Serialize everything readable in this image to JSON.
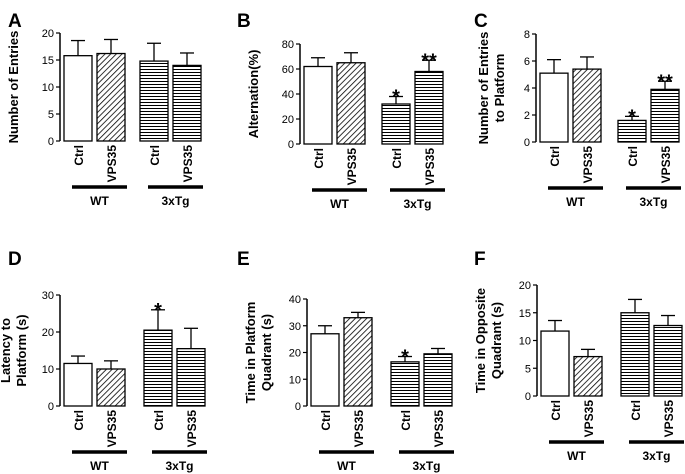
{
  "chart_data": [
    {
      "panel": "A",
      "type": "bar",
      "ylabel": [
        "Number of Entries"
      ],
      "ylim": [
        0,
        20
      ],
      "yticks": [
        0,
        5,
        10,
        15,
        20
      ],
      "categories": [
        "Ctrl",
        "VPS35",
        "Ctrl",
        "VPS35"
      ],
      "groups": [
        "WT",
        "3xTg"
      ],
      "values": [
        15.8,
        16.2,
        14.8,
        14.0
      ],
      "errors": [
        2.8,
        2.6,
        3.3,
        2.3
      ],
      "annotations": [
        "",
        "",
        "",
        ""
      ]
    },
    {
      "panel": "B",
      "type": "bar",
      "ylabel": [
        "Alternation(%)"
      ],
      "ylim": [
        0,
        80
      ],
      "yticks": [
        0,
        20,
        40,
        60,
        80
      ],
      "categories": [
        "Ctrl",
        "VPS35",
        "Ctrl",
        "VPS35"
      ],
      "groups": [
        "WT",
        "3xTg"
      ],
      "values": [
        62,
        65,
        32,
        58
      ],
      "errors": [
        7,
        8,
        6,
        9
      ],
      "annotations": [
        "",
        "",
        "*",
        "**"
      ]
    },
    {
      "panel": "C",
      "type": "bar",
      "ylabel": [
        "Number of Entries",
        "to Platform"
      ],
      "ylim": [
        0,
        8
      ],
      "yticks": [
        0,
        2,
        4,
        6,
        8
      ],
      "categories": [
        "Ctrl",
        "VPS35",
        "Ctrl",
        "VPS35"
      ],
      "groups": [
        "WT",
        "3xTg"
      ],
      "values": [
        5.1,
        5.4,
        1.6,
        3.9
      ],
      "errors": [
        1.0,
        0.9,
        0.3,
        0.6
      ],
      "annotations": [
        "",
        "",
        "*",
        "**"
      ]
    },
    {
      "panel": "D",
      "type": "bar",
      "ylabel": [
        "Latency to",
        "Platform (s)"
      ],
      "ylim": [
        0,
        30
      ],
      "yticks": [
        0,
        10,
        20,
        30
      ],
      "categories": [
        "Ctrl",
        "VPS35",
        "Ctrl",
        "VPS35"
      ],
      "groups": [
        "WT",
        "3xTg"
      ],
      "values": [
        11.5,
        10.0,
        20.5,
        15.5
      ],
      "errors": [
        2.0,
        2.2,
        5.5,
        5.5
      ],
      "annotations": [
        "",
        "",
        "*",
        ""
      ]
    },
    {
      "panel": "E",
      "type": "bar",
      "ylabel": [
        "Time in Platform",
        "Quadrant (s)"
      ],
      "ylim": [
        0,
        40
      ],
      "yticks": [
        0,
        10,
        20,
        30,
        40
      ],
      "categories": [
        "Ctrl",
        "VPS35",
        "Ctrl",
        "VPS35"
      ],
      "groups": [
        "WT",
        "3xTg"
      ],
      "values": [
        27,
        33,
        16.5,
        19.5
      ],
      "errors": [
        3,
        2,
        2,
        2
      ],
      "annotations": [
        "",
        "",
        "*",
        ""
      ]
    },
    {
      "panel": "F",
      "type": "bar",
      "ylabel": [
        "Time in Opposite",
        "Quadrant (s)"
      ],
      "ylim": [
        0,
        20
      ],
      "yticks": [
        0,
        5,
        10,
        15,
        20
      ],
      "categories": [
        "Ctrl",
        "VPS35",
        "Ctrl",
        "VPS35"
      ],
      "groups": [
        "WT",
        "3xTg"
      ],
      "values": [
        11.7,
        7.1,
        15.0,
        12.7
      ],
      "errors": [
        1.9,
        1.3,
        2.4,
        1.8
      ],
      "annotations": [
        "",
        "",
        "",
        ""
      ]
    }
  ]
}
